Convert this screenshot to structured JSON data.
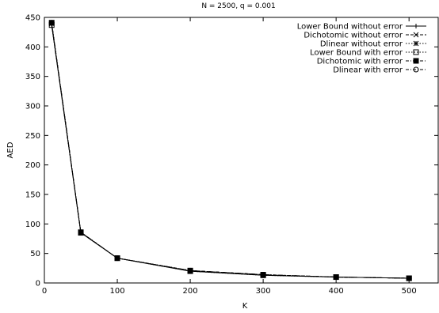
{
  "chart_data": {
    "type": "line",
    "title": "N = 2500, q = 0.001",
    "xlabel": "K",
    "ylabel": "AED",
    "xlim": [
      0,
      540
    ],
    "ylim": [
      0,
      450
    ],
    "xticks": [
      0,
      100,
      200,
      300,
      400,
      500
    ],
    "yticks": [
      0,
      50,
      100,
      150,
      200,
      250,
      300,
      350,
      400,
      450
    ],
    "grid": false,
    "legend_position": "top-right",
    "x": [
      10,
      50,
      100,
      200,
      300,
      400,
      500
    ],
    "series": [
      {
        "name": "Lower Bound without error",
        "marker": "plus",
        "dash": "solid",
        "values": [
          437,
          85,
          42,
          20,
          13,
          10,
          8
        ]
      },
      {
        "name": "Dichotomic without error",
        "marker": "cross",
        "dash": "dashed",
        "values": [
          440,
          86,
          42,
          21,
          14,
          10,
          8
        ]
      },
      {
        "name": "Dlinear without error",
        "marker": "star",
        "dash": "dotted",
        "values": [
          440,
          86,
          42,
          21,
          14,
          10,
          8
        ]
      },
      {
        "name": "Lower Bound with error",
        "marker": "square-open",
        "dash": "dotted",
        "values": [
          437,
          85,
          42,
          20,
          13,
          10,
          8
        ]
      },
      {
        "name": "Dichotomic with error",
        "marker": "square-filled",
        "dash": "dashdot",
        "values": [
          441,
          86,
          42,
          21,
          14,
          10,
          8
        ]
      },
      {
        "name": "Dlinear with error",
        "marker": "circle-open",
        "dash": "dashdot",
        "values": [
          441,
          86,
          42,
          21,
          14,
          10,
          8
        ]
      }
    ]
  }
}
